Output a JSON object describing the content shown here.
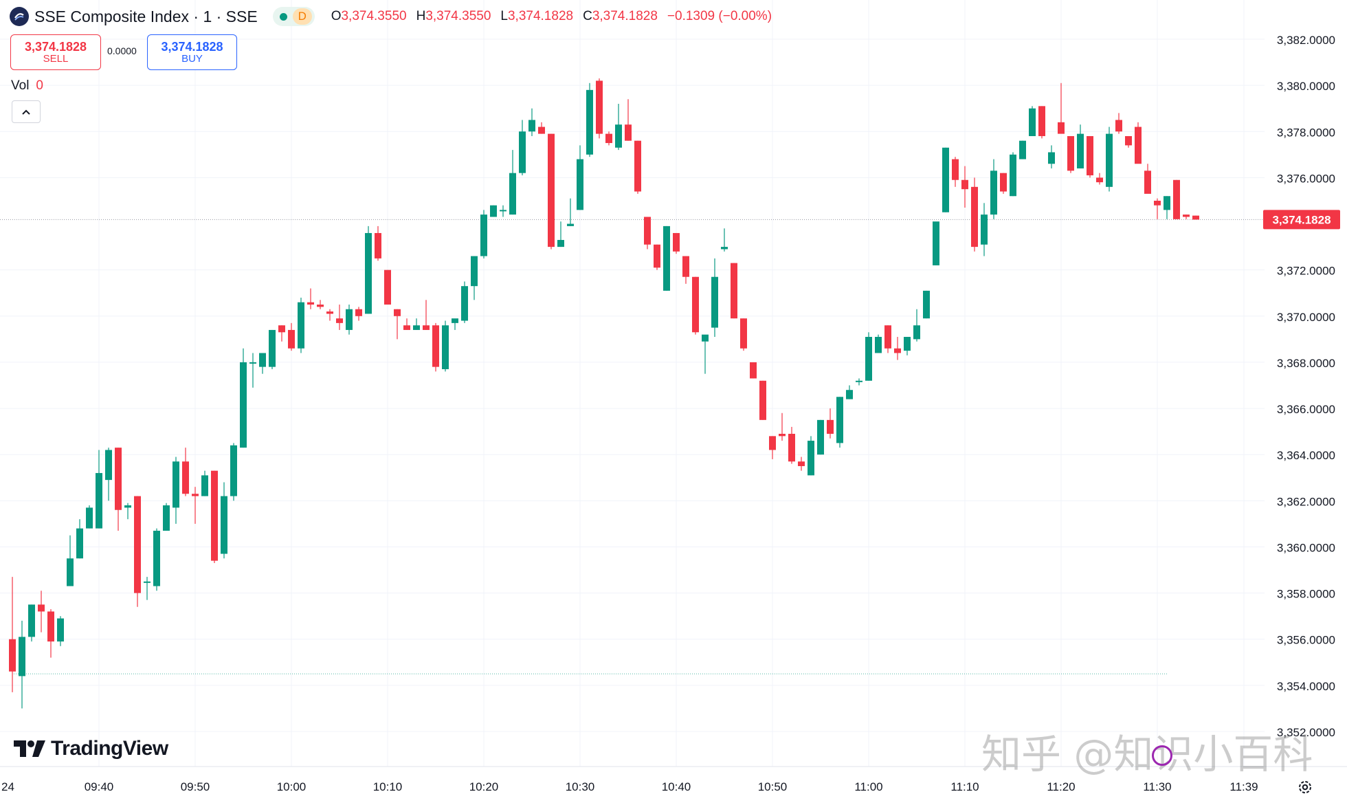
{
  "header": {
    "symbol": "SSE Composite Index · 1 · SSE",
    "status_letter": "D",
    "ohlc": [
      {
        "key": "O",
        "value": "3,374.3550"
      },
      {
        "key": "H",
        "value": "3,374.3550"
      },
      {
        "key": "L",
        "value": "3,374.1828"
      },
      {
        "key": "C",
        "value": "3,374.1828"
      }
    ],
    "change": "−0.1309 (−0.00%)"
  },
  "trade": {
    "sell_price": "3,374.1828",
    "sell_label": "SELL",
    "spread": "0.0000",
    "buy_price": "3,374.1828",
    "buy_label": "BUY"
  },
  "volume": {
    "label": "Vol",
    "value": "0"
  },
  "brand": "TradingView",
  "watermark": "知乎 @知识小百科",
  "colors": {
    "up": "#089981",
    "down": "#f23645",
    "grid": "#f0f3fa",
    "text": "#131722",
    "price_line": "#9598a1",
    "baseline": "#089981"
  },
  "chart_data": {
    "type": "candlestick",
    "title": "SSE Composite Index · 1 · SSE",
    "interval": "1 minute",
    "price_axis_side": "right",
    "ylim": [
      3351.5,
      3383.4
    ],
    "y_ticks": [
      "3,382.0000",
      "3,380.0000",
      "3,378.0000",
      "3,376.0000",
      "3,372.0000",
      "3,370.0000",
      "3,368.0000",
      "3,366.0000",
      "3,364.0000",
      "3,362.0000",
      "3,360.0000",
      "3,358.0000",
      "3,356.0000",
      "3,354.0000",
      "3,352.0000"
    ],
    "y_tick_values": [
      3382,
      3380,
      3378,
      3376,
      3372,
      3370,
      3368,
      3366,
      3364,
      3362,
      3360,
      3358,
      3356,
      3354,
      3352
    ],
    "x_start_label": "24",
    "x_ticks": [
      "09:40",
      "09:50",
      "10:00",
      "10:10",
      "10:20",
      "10:30",
      "10:40",
      "10:50",
      "11:00",
      "11:10",
      "11:20",
      "11:30",
      "11:39"
    ],
    "last_price": 3374.1828,
    "last_price_label": "3,374.1828",
    "baseline_price": 3354.5,
    "grid": true,
    "candles": [
      [
        3356.0,
        3358.7,
        3353.7,
        3354.6
      ],
      [
        3354.4,
        3356.8,
        3353.0,
        3356.1
      ],
      [
        3356.1,
        3357.5,
        3355.9,
        3357.5
      ],
      [
        3357.5,
        3358.1,
        3356.3,
        3357.2
      ],
      [
        3357.2,
        3357.3,
        3355.2,
        3355.9
      ],
      [
        3355.9,
        3357.0,
        3355.7,
        3356.9
      ],
      [
        3358.3,
        3360.5,
        3358.3,
        3359.5
      ],
      [
        3359.5,
        3361.2,
        3359.5,
        3360.8
      ],
      [
        3360.8,
        3361.8,
        3360.8,
        3361.7
      ],
      [
        3360.8,
        3364.2,
        3360.8,
        3363.2
      ],
      [
        3362.9,
        3364.3,
        3362.0,
        3364.2
      ],
      [
        3364.3,
        3364.3,
        3360.7,
        3361.6
      ],
      [
        3361.7,
        3361.9,
        3361.2,
        3361.8
      ],
      [
        3362.2,
        3362.2,
        3357.4,
        3358.0
      ],
      [
        3358.5,
        3358.7,
        3357.7,
        3358.5
      ],
      [
        3358.3,
        3360.8,
        3358.1,
        3360.7
      ],
      [
        3360.7,
        3361.9,
        3360.7,
        3361.8
      ],
      [
        3361.7,
        3363.9,
        3361.0,
        3363.7
      ],
      [
        3363.7,
        3364.3,
        3362.2,
        3362.3
      ],
      [
        3362.3,
        3362.6,
        3361.0,
        3362.2
      ],
      [
        3362.2,
        3363.3,
        3362.2,
        3363.1
      ],
      [
        3363.3,
        3363.3,
        3359.3,
        3359.4
      ],
      [
        3359.7,
        3362.8,
        3359.5,
        3362.2
      ],
      [
        3362.2,
        3364.5,
        3362.0,
        3364.4
      ],
      [
        3364.3,
        3368.6,
        3364.3,
        3368.0
      ],
      [
        3368.0,
        3368.4,
        3366.9,
        3368.0
      ],
      [
        3367.8,
        3368.4,
        3367.5,
        3368.4
      ],
      [
        3367.8,
        3369.4,
        3367.7,
        3369.4
      ],
      [
        3369.6,
        3369.6,
        3368.9,
        3369.3
      ],
      [
        3369.4,
        3369.7,
        3368.5,
        3368.6
      ],
      [
        3368.6,
        3370.8,
        3368.4,
        3370.6
      ],
      [
        3370.6,
        3371.2,
        3370.3,
        3370.5
      ],
      [
        3370.5,
        3370.7,
        3370.3,
        3370.4
      ],
      [
        3370.2,
        3370.3,
        3369.8,
        3370.1
      ],
      [
        3369.9,
        3370.5,
        3369.4,
        3369.7
      ],
      [
        3369.4,
        3370.5,
        3369.2,
        3370.3
      ],
      [
        3370.3,
        3370.4,
        3369.8,
        3370.0
      ],
      [
        3370.1,
        3373.9,
        3370.1,
        3373.6
      ],
      [
        3373.6,
        3373.9,
        3372.4,
        3372.5
      ],
      [
        3372.0,
        3372.0,
        3370.5,
        3370.5
      ],
      [
        3370.3,
        3370.3,
        3369.0,
        3370.0
      ],
      [
        3369.6,
        3369.9,
        3369.4,
        3369.4
      ],
      [
        3369.4,
        3369.9,
        3369.4,
        3369.6
      ],
      [
        3369.6,
        3370.7,
        3369.4,
        3369.4
      ],
      [
        3369.6,
        3369.7,
        3367.6,
        3367.8
      ],
      [
        3367.7,
        3369.8,
        3367.6,
        3369.6
      ],
      [
        3369.7,
        3369.8,
        3369.4,
        3369.9
      ],
      [
        3369.8,
        3371.5,
        3369.7,
        3371.3
      ],
      [
        3371.3,
        3372.6,
        3370.7,
        3372.6
      ],
      [
        3372.6,
        3374.6,
        3372.5,
        3374.4
      ],
      [
        3374.3,
        3374.8,
        3374.3,
        3374.8
      ],
      [
        3374.6,
        3374.8,
        3374.3,
        3374.6
      ],
      [
        3374.4,
        3377.2,
        3374.4,
        3376.2
      ],
      [
        3376.2,
        3378.5,
        3376.1,
        3378.0
      ],
      [
        3378.0,
        3379.0,
        3377.8,
        3378.5
      ],
      [
        3378.2,
        3378.4,
        3377.9,
        3377.9
      ],
      [
        3377.9,
        3377.9,
        3372.9,
        3373.0
      ],
      [
        3373.0,
        3374.1,
        3373.0,
        3373.3
      ],
      [
        3373.9,
        3375.1,
        3373.9,
        3374.0
      ],
      [
        3374.6,
        3377.4,
        3374.6,
        3376.8
      ],
      [
        3377.0,
        3380.1,
        3376.9,
        3379.8
      ],
      [
        3380.2,
        3380.3,
        3377.7,
        3377.9
      ],
      [
        3377.9,
        3378.0,
        3377.4,
        3377.5
      ],
      [
        3377.3,
        3379.2,
        3377.2,
        3378.3
      ],
      [
        3378.3,
        3379.4,
        3377.6,
        3377.6
      ],
      [
        3377.6,
        3377.6,
        3375.3,
        3375.4
      ],
      [
        3374.3,
        3374.3,
        3372.9,
        3373.1
      ],
      [
        3373.1,
        3373.1,
        3372.0,
        3372.1
      ],
      [
        3371.1,
        3373.9,
        3371.1,
        3373.9
      ],
      [
        3373.6,
        3373.6,
        3372.7,
        3372.8
      ],
      [
        3372.6,
        3372.6,
        3371.4,
        3371.7
      ],
      [
        3371.7,
        3371.7,
        3369.2,
        3369.3
      ],
      [
        3368.9,
        3368.9,
        3367.5,
        3369.2
      ],
      [
        3369.5,
        3372.5,
        3369.1,
        3371.7
      ],
      [
        3372.9,
        3373.8,
        3372.8,
        3373.0
      ],
      [
        3372.3,
        3372.3,
        3369.9,
        3369.9
      ],
      [
        3369.9,
        3369.9,
        3368.5,
        3368.6
      ],
      [
        3368.0,
        3368.0,
        3367.3,
        3367.3
      ],
      [
        3367.2,
        3367.2,
        3365.5,
        3365.5
      ],
      [
        3364.8,
        3364.8,
        3363.8,
        3364.2
      ],
      [
        3364.9,
        3365.8,
        3364.6,
        3364.8
      ],
      [
        3364.9,
        3365.2,
        3363.6,
        3363.7
      ],
      [
        3363.7,
        3363.9,
        3363.3,
        3363.5
      ],
      [
        3363.1,
        3364.8,
        3363.1,
        3364.6
      ],
      [
        3364.0,
        3365.5,
        3364.0,
        3365.5
      ],
      [
        3365.5,
        3366.0,
        3364.7,
        3364.9
      ],
      [
        3364.5,
        3366.5,
        3364.3,
        3366.5
      ],
      [
        3366.4,
        3367.0,
        3366.4,
        3366.8
      ],
      [
        3367.2,
        3367.3,
        3367.0,
        3367.2
      ],
      [
        3367.2,
        3369.3,
        3367.2,
        3369.1
      ],
      [
        3368.4,
        3369.2,
        3368.4,
        3369.1
      ],
      [
        3369.6,
        3369.6,
        3368.4,
        3368.6
      ],
      [
        3368.6,
        3369.1,
        3368.1,
        3368.4
      ],
      [
        3368.5,
        3369.1,
        3368.3,
        3369.1
      ],
      [
        3369.0,
        3370.3,
        3368.9,
        3369.6
      ],
      [
        3369.9,
        3371.1,
        3369.9,
        3371.1
      ],
      [
        3372.2,
        3374.0,
        3372.2,
        3374.1
      ],
      [
        3374.5,
        3377.3,
        3374.5,
        3377.3
      ],
      [
        3376.8,
        3376.9,
        3375.6,
        3375.9
      ],
      [
        3375.9,
        3376.5,
        3374.7,
        3375.5
      ],
      [
        3375.6,
        3376.0,
        3372.8,
        3373.0
      ],
      [
        3373.1,
        3374.9,
        3372.6,
        3374.4
      ],
      [
        3374.4,
        3376.8,
        3374.2,
        3376.3
      ],
      [
        3376.2,
        3376.2,
        3375.3,
        3375.4
      ],
      [
        3375.2,
        3377.1,
        3375.2,
        3377.0
      ],
      [
        3376.8,
        3377.6,
        3376.8,
        3377.6
      ],
      [
        3377.8,
        3379.1,
        3377.8,
        3379.0
      ],
      [
        3379.1,
        3379.1,
        3377.7,
        3377.8
      ],
      [
        3376.6,
        3377.4,
        3376.4,
        3377.1
      ],
      [
        3378.4,
        3380.1,
        3378.0,
        3377.9
      ],
      [
        3377.8,
        3377.8,
        3376.2,
        3376.3
      ],
      [
        3376.4,
        3378.3,
        3376.4,
        3377.9
      ],
      [
        3377.8,
        3377.8,
        3376.0,
        3376.1
      ],
      [
        3376.0,
        3376.2,
        3375.7,
        3375.8
      ],
      [
        3375.6,
        3378.2,
        3375.4,
        3377.9
      ],
      [
        3378.5,
        3378.8,
        3377.9,
        3378.0
      ],
      [
        3377.8,
        3377.8,
        3377.3,
        3377.4
      ],
      [
        3378.2,
        3378.4,
        3376.7,
        3376.6
      ],
      [
        3376.3,
        3376.6,
        3375.5,
        3375.3
      ],
      [
        3375.0,
        3375.1,
        3374.2,
        3374.8
      ],
      [
        3374.6,
        3375.2,
        3374.2,
        3375.2
      ],
      [
        3375.9,
        3375.9,
        3374.2,
        3374.2
      ],
      [
        3374.4,
        3374.4,
        3374.2,
        3374.3
      ],
      [
        3374.355,
        3374.355,
        3374.1828,
        3374.1828
      ]
    ]
  }
}
